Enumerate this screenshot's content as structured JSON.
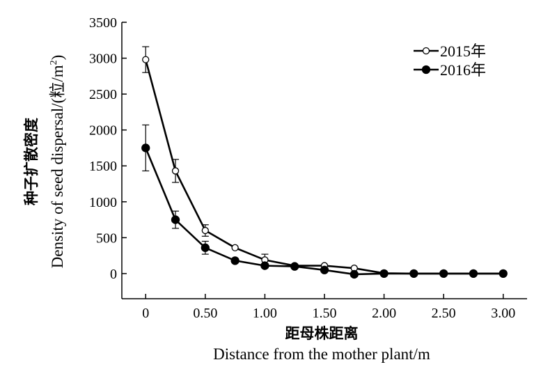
{
  "chart_data": {
    "type": "line",
    "xlabel_cn": "距母株距离",
    "xlabel_en": "Distance from the mother plant/m",
    "ylabel_cn": "种子扩散密度",
    "ylabel_en_prefix": "Density of seed dispersal/(粒/m",
    "ylabel_en_sup": "2",
    "ylabel_en_suffix": ")",
    "xlim": [
      -0.2,
      3.2
    ],
    "ylim": [
      -350,
      3500
    ],
    "x_ticks": [
      0,
      0.5,
      1.0,
      1.5,
      2.0,
      2.5,
      3.0
    ],
    "x_tick_labels": [
      "0",
      "0.50",
      "1.00",
      "1.50",
      "2.00",
      "2.50",
      "3.00"
    ],
    "y_ticks": [
      0,
      500,
      1000,
      1500,
      2000,
      2500,
      3000,
      3500
    ],
    "y_tick_labels": [
      "0",
      "500",
      "1000",
      "1500",
      "2000",
      "2500",
      "3000",
      "3500"
    ],
    "legend_position": "top-right",
    "x": [
      0,
      0.25,
      0.5,
      0.75,
      1.0,
      1.25,
      1.5,
      1.75,
      2.0,
      2.25,
      2.5,
      2.75,
      3.0
    ],
    "series": [
      {
        "name": "2015年",
        "marker": "open-circle",
        "values": [
          2980,
          1430,
          600,
          360,
          190,
          110,
          110,
          75,
          5,
          0,
          0,
          0,
          0
        ],
        "errors": [
          180,
          160,
          80,
          0,
          80,
          0,
          0,
          0,
          0,
          0,
          0,
          0,
          0
        ]
      },
      {
        "name": "2016年",
        "marker": "filled-circle",
        "values": [
          1750,
          750,
          360,
          180,
          110,
          100,
          50,
          -10,
          0,
          0,
          0,
          0,
          0
        ],
        "errors": [
          320,
          120,
          90,
          0,
          0,
          0,
          0,
          0,
          0,
          0,
          0,
          0,
          0
        ]
      }
    ]
  }
}
